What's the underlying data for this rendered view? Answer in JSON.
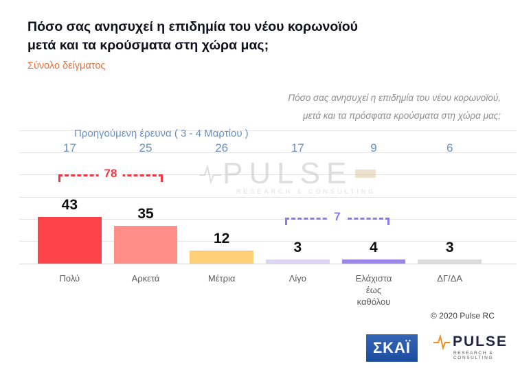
{
  "header": {
    "title_line1": "Πόσο σας ανησυχεί η επιδημία του νέου κορωνοϊού",
    "title_line2": "μετά και τα κρούσματα στη χώρα μας;",
    "subtitle": "Σύνολο δείγματος",
    "question_line1": "Πόσο σας ανησυχεί η επιδημία του νέου κορωνοϊού,",
    "question_line2": "μετά και τα πρόσφατα κρούσματα στη χώρα μας;"
  },
  "chart_data": {
    "type": "bar",
    "title": "Πόσο σας ανησυχεί η επιδημία του νέου κορωνοϊού μετά και τα κρούσματα στη χώρα μας;",
    "subtitle": "Σύνολο δείγματος",
    "categories": [
      "Πολύ",
      "Αρκετά",
      "Μέτρια",
      "Λίγο",
      "Ελάχιστα\nέως\nκαθόλου",
      "ΔΓ/ΔΑ"
    ],
    "values": [
      43,
      35,
      12,
      3,
      4,
      3
    ],
    "colors": [
      "#fc4349",
      "#fe8e87",
      "#ffd077",
      "#dcd5f6",
      "#9d87ea",
      "#dcdcdc"
    ],
    "previous": {
      "label": "Προηγούμενη έρευνα  ( 3 - 4 Μαρτίου )",
      "values": [
        17,
        25,
        26,
        17,
        9,
        6
      ]
    },
    "annotations": [
      {
        "label": "78",
        "span": [
          "Πολύ",
          "Αρκετά"
        ],
        "color": "#f2353f"
      },
      {
        "label": "7",
        "span": [
          "Λίγο",
          "Ελάχιστα έως καθόλου"
        ],
        "color": "#8f78e8"
      }
    ],
    "xlabel": "",
    "ylabel": "",
    "ylim": [
      0,
      100
    ],
    "grid": true,
    "legend": false
  },
  "watermark": {
    "text": "PULSE",
    "tagline": "RESEARCH & CONSULTING"
  },
  "footer": {
    "copyright": "© 2020 Pulse RC",
    "skai_logo": "ΣΚΑΪ",
    "pulse_logo": "PULSE",
    "pulse_tagline": "RESEARCH & CONSULTING"
  }
}
